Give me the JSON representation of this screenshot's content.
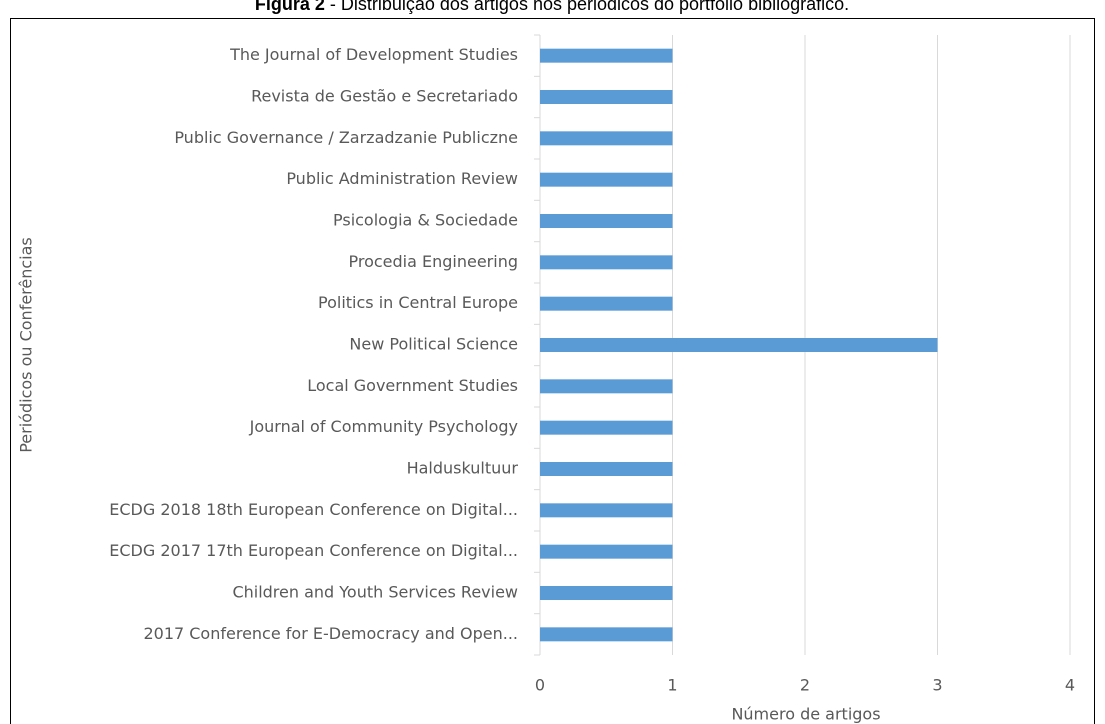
{
  "chart_data": {
    "type": "bar",
    "orientation": "horizontal",
    "figure_label": "Figura 2",
    "title": "- Distribuição dos artigos nos periódicos do portfólio bibliográfico.",
    "x_label": "Número de artigos",
    "y_label": "Periódicos ou Conferências",
    "categories": [
      "The Journal of Development Studies",
      "Revista de Gestão e Secretariado",
      "Public Governance / Zarzadzanie Publiczne",
      "Public Administration Review",
      "Psicologia & Sociedade",
      "Procedia Engineering",
      "Politics in Central Europe",
      "New Political Science",
      "Local Government Studies",
      "Journal of Community Psychology",
      "Halduskultuur",
      "ECDG 2018 18th European Conference on Digital...",
      "ECDG 2017 17th European Conference on Digital...",
      "Children and Youth Services Review",
      "2017 Conference for E-Democracy and Open..."
    ],
    "values": [
      1,
      1,
      1,
      1,
      1,
      1,
      1,
      3,
      1,
      1,
      1,
      1,
      1,
      1,
      1
    ],
    "color": "#5b9bd5",
    "xlim": [
      0,
      4
    ],
    "xticks": [
      0,
      1,
      2,
      3,
      4
    ],
    "grid": true
  }
}
